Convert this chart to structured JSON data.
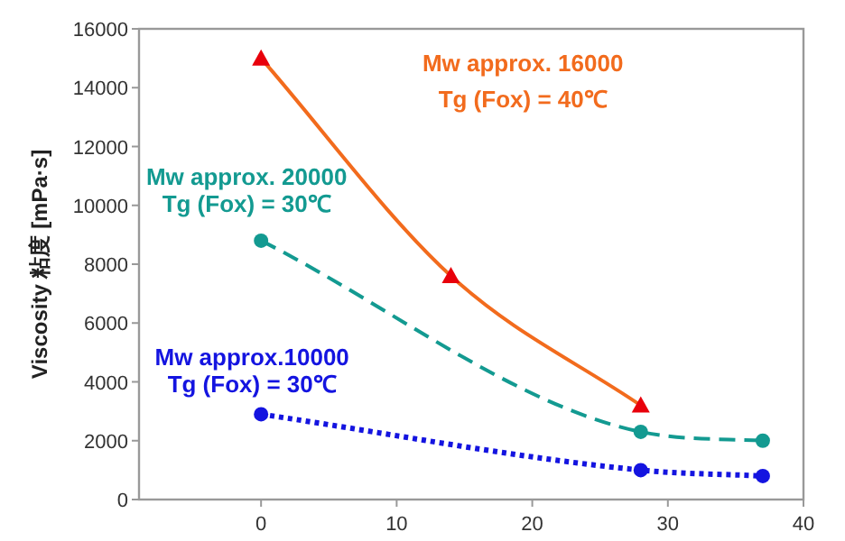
{
  "chart_data": {
    "type": "line",
    "ylabel": "Viscosity 粘度 [mPa·s]",
    "xlim": [
      -9,
      40
    ],
    "xticks": [
      0,
      10,
      20,
      30,
      40
    ],
    "ylim": [
      0,
      16000
    ],
    "yticks": [
      0,
      2000,
      4000,
      6000,
      8000,
      10000,
      12000,
      14000,
      16000
    ],
    "grid": false,
    "series": [
      {
        "name": "Mw approx. 16000\nTg (Fox) = 40℃",
        "color": "#f26b1d",
        "colors": [
          "#e8000b",
          "#e8000b",
          "#e8000b"
        ],
        "marker": "triangle",
        "line_style": "solid",
        "x": [
          0,
          14,
          28
        ],
        "values": [
          15000,
          7600,
          3200
        ]
      },
      {
        "name": "Mw approx. 20000\nTg (Fox) = 30℃",
        "color": "#139a91",
        "marker": "circle",
        "line_style": "dashed",
        "x": [
          0,
          28,
          37
        ],
        "values": [
          8800,
          2300,
          2000
        ]
      },
      {
        "name": "Mw approx.10000\nTg (Fox) = 30℃",
        "color": "#1414e0",
        "marker": "circle",
        "line_style": "dotted",
        "x": [
          0,
          28,
          37
        ],
        "values": [
          2900,
          1000,
          800
        ]
      }
    ]
  }
}
